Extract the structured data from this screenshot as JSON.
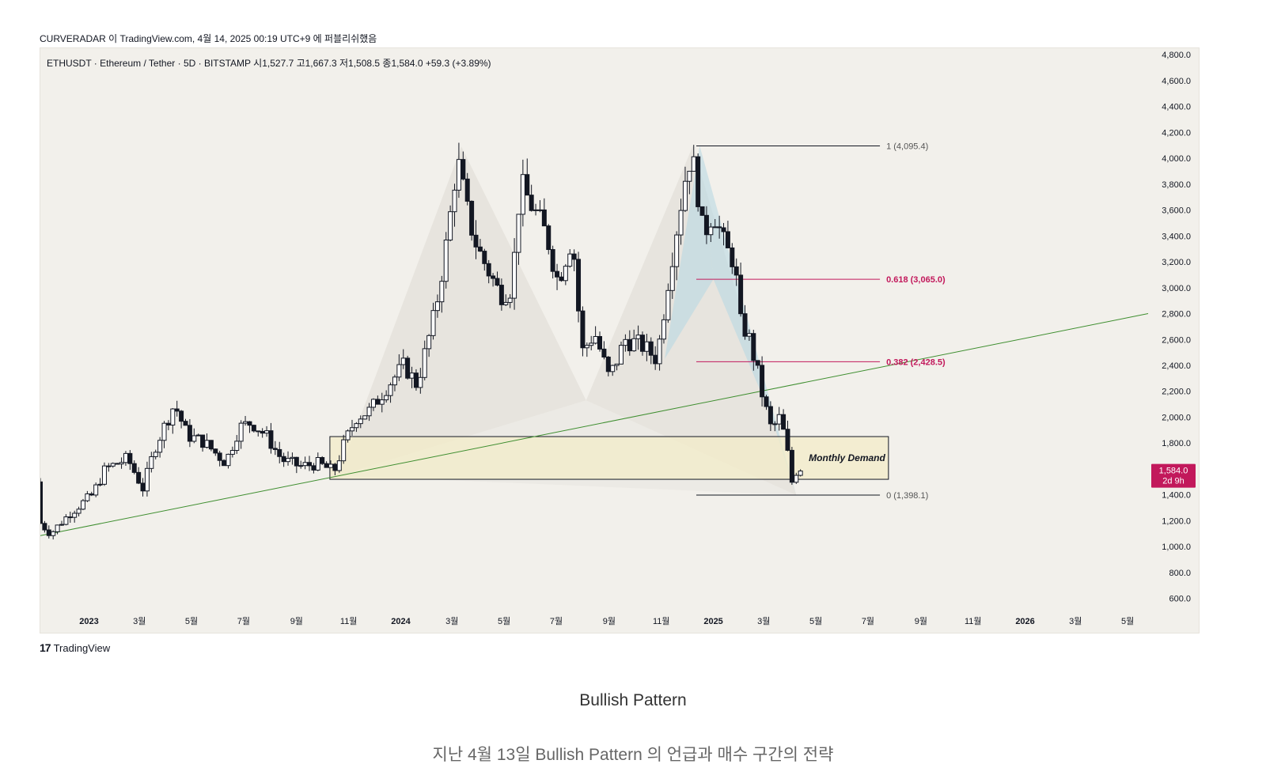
{
  "header": {
    "publish_line": "CURVERADAR 이 TradingView.com, 4월 14, 2025 00:19 UTC+9 에 퍼블리쉬했음",
    "symbol_line": "ETHUSDT · Ethereum / Tether · 5D · BITSTAMP  시1,527.7  고1,667.3  저1,508.5  종1,584.0  +59.3 (+3.89%)"
  },
  "footer": {
    "logo_text": "TradingView",
    "logo_mark": "17",
    "caption_title": "Bullish Pattern",
    "caption_sub": "지난 4월 13일 Bullish Pattern 의 언급과 매수 구간의 전략"
  },
  "colors": {
    "background": "#f2f0eb",
    "candle": "#131722",
    "trendline": "#3e8e2f",
    "fib_level": "#c2185b",
    "fib_anchor": "#131722",
    "demand_zone": "#f3ecc8",
    "pattern_fill_grey": "#e3e0da",
    "pattern_fill_blue": "#b9d9e3",
    "price_tag": "#c2185b"
  },
  "chart_data": {
    "type": "candlestick",
    "symbol": "ETHUSDT",
    "timeframe": "5D",
    "exchange": "BITSTAMP",
    "y_axis": {
      "ticks": [
        4800,
        4600,
        4400,
        4200,
        4000,
        3800,
        3600,
        3400,
        3200,
        3000,
        2800,
        2600,
        2400,
        2200,
        2000,
        1800,
        1600,
        1400,
        1200,
        1000,
        800,
        600
      ],
      "tick_labels": [
        "4,800.0",
        "4,600.0",
        "4,400.0",
        "4,200.0",
        "4,000.0",
        "3,800.0",
        "3,600.0",
        "3,400.0",
        "3,200.0",
        "3,000.0",
        "2,800.0",
        "2,600.0",
        "2,400.0",
        "2,200.0",
        "2,000.0",
        "1,800.0",
        "",
        "1,400.0",
        "1,200.0",
        "1,000.0",
        "800.0",
        "600.0"
      ],
      "range": [
        500,
        4850
      ]
    },
    "x_axis": {
      "range": [
        "2022-11-05",
        "2026-05-25"
      ],
      "ticks": [
        {
          "date": "2023-01-01",
          "label": "2023",
          "bold": true
        },
        {
          "date": "2023-03-01",
          "label": "3월"
        },
        {
          "date": "2023-05-01",
          "label": "5월"
        },
        {
          "date": "2023-07-01",
          "label": "7월"
        },
        {
          "date": "2023-09-01",
          "label": "9월"
        },
        {
          "date": "2023-11-01",
          "label": "11월"
        },
        {
          "date": "2024-01-01",
          "label": "2024",
          "bold": true
        },
        {
          "date": "2024-03-01",
          "label": "3월"
        },
        {
          "date": "2024-05-01",
          "label": "5월"
        },
        {
          "date": "2024-07-01",
          "label": "7월"
        },
        {
          "date": "2024-09-01",
          "label": "9월"
        },
        {
          "date": "2024-11-01",
          "label": "11월"
        },
        {
          "date": "2025-01-01",
          "label": "2025",
          "bold": true
        },
        {
          "date": "2025-03-01",
          "label": "3월"
        },
        {
          "date": "2025-05-01",
          "label": "5월"
        },
        {
          "date": "2025-07-01",
          "label": "7월"
        },
        {
          "date": "2025-09-01",
          "label": "9월"
        },
        {
          "date": "2025-11-01",
          "label": "11월"
        },
        {
          "date": "2026-01-01",
          "label": "2026",
          "bold": true
        },
        {
          "date": "2026-03-01",
          "label": "3월"
        },
        {
          "date": "2026-05-01",
          "label": "5월"
        }
      ]
    },
    "price_path": [
      [
        "2022-11-05",
        1500
      ],
      [
        "2022-11-10",
        1180
      ],
      [
        "2022-11-22",
        1100
      ],
      [
        "2022-12-15",
        1260
      ],
      [
        "2023-01-10",
        1400
      ],
      [
        "2023-01-25",
        1600
      ],
      [
        "2023-02-20",
        1680
      ],
      [
        "2023-03-10",
        1450
      ],
      [
        "2023-03-25",
        1780
      ],
      [
        "2023-04-16",
        2100
      ],
      [
        "2023-05-01",
        1860
      ],
      [
        "2023-05-20",
        1810
      ],
      [
        "2023-06-15",
        1650
      ],
      [
        "2023-07-01",
        1920
      ],
      [
        "2023-07-15",
        1960
      ],
      [
        "2023-08-01",
        1860
      ],
      [
        "2023-08-20",
        1670
      ],
      [
        "2023-09-10",
        1620
      ],
      [
        "2023-10-01",
        1640
      ],
      [
        "2023-10-20",
        1580
      ],
      [
        "2023-11-01",
        1800
      ],
      [
        "2023-11-15",
        2000
      ],
      [
        "2023-12-01",
        2050
      ],
      [
        "2023-12-20",
        2230
      ],
      [
        "2024-01-10",
        2400
      ],
      [
        "2024-01-25",
        2250
      ],
      [
        "2024-02-15",
        2800
      ],
      [
        "2024-03-01",
        3400
      ],
      [
        "2024-03-12",
        4000
      ],
      [
        "2024-03-25",
        3550
      ],
      [
        "2024-04-05",
        3300
      ],
      [
        "2024-04-20",
        3100
      ],
      [
        "2024-05-01",
        2950
      ],
      [
        "2024-05-15",
        3000
      ],
      [
        "2024-05-25",
        3800
      ],
      [
        "2024-06-10",
        3600
      ],
      [
        "2024-06-25",
        3400
      ],
      [
        "2024-07-08",
        3050
      ],
      [
        "2024-07-25",
        3400
      ],
      [
        "2024-08-05",
        2500
      ],
      [
        "2024-08-20",
        2650
      ],
      [
        "2024-09-06",
        2300
      ],
      [
        "2024-09-25",
        2600
      ],
      [
        "2024-10-15",
        2550
      ],
      [
        "2024-11-01",
        2450
      ],
      [
        "2024-11-15",
        3100
      ],
      [
        "2024-11-25",
        3500
      ],
      [
        "2024-12-08",
        4000
      ],
      [
        "2024-12-16",
        3900
      ],
      [
        "2024-12-25",
        3400
      ],
      [
        "2025-01-06",
        3600
      ],
      [
        "2025-01-20",
        3300
      ],
      [
        "2025-02-01",
        3200
      ],
      [
        "2025-02-04",
        2750
      ],
      [
        "2025-02-15",
        2650
      ],
      [
        "2025-02-25",
        2400
      ],
      [
        "2025-03-05",
        2150
      ],
      [
        "2025-03-15",
        1900
      ],
      [
        "2025-03-25",
        2000
      ],
      [
        "2025-04-01",
        1800
      ],
      [
        "2025-04-08",
        1500
      ],
      [
        "2025-04-13",
        1584
      ]
    ],
    "last_price": {
      "label": "1,584.0",
      "countdown": "2d 9h",
      "value": 1584.0
    },
    "fibonacci": [
      {
        "ratio_label": "1 (4,095.4)",
        "value": 4095.4,
        "style": "anchor"
      },
      {
        "ratio_label": "0.618 (3,065.0)",
        "value": 3065.0,
        "style": "level"
      },
      {
        "ratio_label": "0.382 (2,428.5)",
        "value": 2428.5,
        "style": "level"
      },
      {
        "ratio_label": "0 (1,398.1)",
        "value": 1398.1,
        "style": "anchor"
      }
    ],
    "fib_start_date": "2024-12-12",
    "fib_end_date": "2025-07-15",
    "trendline": [
      [
        "2022-11-05",
        1085
      ],
      [
        "2026-05-25",
        2800
      ]
    ],
    "demand_zone": {
      "label": "Monthly Demand",
      "from": "2023-10-10",
      "to": "2025-07-25",
      "low": 1520,
      "high": 1850
    },
    "harmonic_pattern": {
      "grey": [
        [
          "2023-10-20",
          1550
        ],
        [
          "2024-03-12",
          4090
        ],
        [
          "2024-08-05",
          2130
        ],
        [
          "2024-12-08",
          4095
        ],
        [
          "2025-04-08",
          1398
        ]
      ],
      "blue": [
        [
          "2024-11-05",
          2450
        ],
        [
          "2024-12-16",
          4095
        ],
        [
          "2025-01-01",
          3065
        ],
        [
          "2025-03-10",
          2000
        ],
        [
          "2025-04-08",
          1398
        ]
      ]
    }
  }
}
